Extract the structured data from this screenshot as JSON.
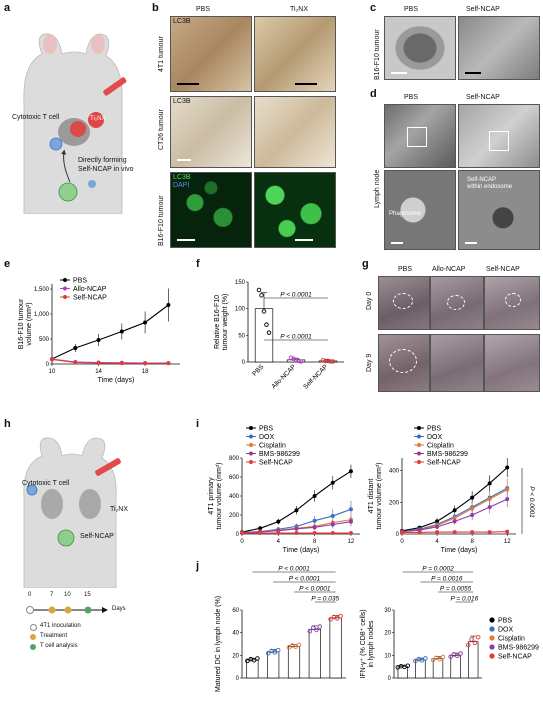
{
  "panel_a": {
    "letter": "a",
    "cytotoxic_label": "Cytotoxic T cell",
    "drug_label": "Ti₂NX",
    "forming_line1": "Directly forming",
    "forming_line2": "Self-NCAP in vivo"
  },
  "panel_b": {
    "letter": "b",
    "col_pbs": "PBS",
    "col_ti2nx": "Ti₂NX",
    "row1": "4T1 tumour",
    "row2": "CT26 tumour",
    "row3": "B16-F10 tumour",
    "stain_lc3b": "LC3B",
    "stain_dapi": "DAPI"
  },
  "panel_c": {
    "letter": "c",
    "col_pbs": "PBS",
    "col_self": "Self-NCAP",
    "row": "B16-F10 tumour"
  },
  "panel_d": {
    "letter": "d",
    "col_pbs": "PBS",
    "col_self": "Self-NCAP",
    "row": "Lymph node",
    "phagosome": "Phagosome",
    "endosome_line1": "Self-NCAP",
    "endosome_line2": "within endosome"
  },
  "panel_g": {
    "letter": "g",
    "col_pbs": "PBS",
    "col_allo": "Allo-NCAP",
    "col_self": "Self-NCAP",
    "day0": "Day 0",
    "day9": "Day 9"
  },
  "panel_h": {
    "letter": "h",
    "cytotoxic_label": "Cytotoxic T cell",
    "drug_label": "Ti₂NX",
    "self_label": "Self-NCAP",
    "timeline_ticks": [
      "0",
      "7",
      "10",
      "15"
    ],
    "timeline_unit": "Days",
    "legend": [
      "4T1 inoculation",
      "Treatment",
      "T cell analysis"
    ]
  },
  "chart_data": [
    {
      "id": "e",
      "letter": "e",
      "type": "line",
      "xlabel": "Time (days)",
      "ylabel_line1": "B16-F10 tumour",
      "ylabel_line2": "volume (mm³)",
      "xlim": [
        10,
        21
      ],
      "ylim": [
        0,
        1600
      ],
      "xticks": [
        "10",
        "14",
        "18"
      ],
      "yticks": [
        "0",
        "500",
        "1,000",
        "1,500"
      ],
      "x": [
        10,
        12,
        14,
        16,
        18,
        20
      ],
      "series": [
        {
          "name": "PBS",
          "color": "#000000",
          "values": [
            100,
            320,
            480,
            650,
            830,
            1180
          ],
          "err": [
            30,
            80,
            120,
            160,
            220,
            330
          ]
        },
        {
          "name": "Allo-NCAP",
          "color": "#b33cc9",
          "values": [
            100,
            40,
            30,
            25,
            20,
            20
          ],
          "err": [
            20,
            15,
            10,
            10,
            10,
            10
          ]
        },
        {
          "name": "Self-NCAP",
          "color": "#e23b3b",
          "values": [
            90,
            30,
            20,
            15,
            15,
            15
          ],
          "err": [
            20,
            10,
            10,
            10,
            10,
            10
          ]
        }
      ]
    },
    {
      "id": "f",
      "letter": "f",
      "type": "bar",
      "ylabel_line1": "Relative B16-F10",
      "ylabel_line2": "tumour weight (%)",
      "ylim": [
        0,
        150
      ],
      "yticks": [
        "0",
        "50",
        "100",
        "150"
      ],
      "categories": [
        "PBS",
        "Allo-NCAP",
        "Self-NCAP"
      ],
      "values": [
        100,
        4,
        2
      ],
      "err": [
        30,
        3,
        2
      ],
      "colors": [
        "#000000",
        "#b33cc9",
        "#e23b3b"
      ],
      "points": [
        [
          135,
          125,
          95,
          70,
          55
        ],
        [
          8,
          6,
          4,
          2,
          1
        ],
        [
          3,
          2,
          2,
          1,
          1
        ]
      ],
      "pvalues": [
        "P < 0.0001",
        "P < 0.0001"
      ]
    },
    {
      "id": "i-primary",
      "letter": "i",
      "type": "line",
      "xlabel": "Time (days)",
      "ylabel_line1": "4T1 primary",
      "ylabel_line2": "tumour volume (mm³)",
      "xlim": [
        0,
        13
      ],
      "ylim": [
        0,
        800
      ],
      "xticks": [
        "0",
        "4",
        "8",
        "12"
      ],
      "yticks": [
        "0",
        "200",
        "400",
        "600",
        "800"
      ],
      "x": [
        0,
        2,
        4,
        6,
        8,
        10,
        12
      ],
      "series": [
        {
          "name": "PBS",
          "color": "#000000",
          "values": [
            20,
            60,
            130,
            250,
            400,
            540,
            660
          ],
          "err": [
            5,
            15,
            30,
            45,
            60,
            70,
            70
          ]
        },
        {
          "name": "DOX",
          "color": "#3a6fc2",
          "values": [
            15,
            25,
            50,
            80,
            140,
            190,
            260
          ],
          "err": [
            5,
            10,
            20,
            30,
            50,
            70,
            90
          ]
        },
        {
          "name": "Cisplatin",
          "color": "#e3793a",
          "values": [
            15,
            25,
            40,
            60,
            80,
            120,
            150
          ],
          "err": [
            5,
            10,
            15,
            20,
            30,
            40,
            50
          ]
        },
        {
          "name": "BMS-986299",
          "color": "#8e3ca8",
          "values": [
            15,
            22,
            35,
            55,
            70,
            100,
            130
          ],
          "err": [
            5,
            10,
            15,
            20,
            30,
            40,
            50
          ]
        },
        {
          "name": "Self-NCAP",
          "color": "#e23b3b",
          "values": [
            10,
            10,
            10,
            10,
            10,
            10,
            10
          ],
          "err": [
            3,
            3,
            3,
            3,
            3,
            3,
            3
          ]
        }
      ]
    },
    {
      "id": "i-distant",
      "type": "line",
      "xlabel": "Time (days)",
      "ylabel_line1": "4T1 distant",
      "ylabel_line2": "tumour volume (mm³)",
      "xlim": [
        0,
        13
      ],
      "ylim": [
        0,
        480
      ],
      "xticks": [
        "0",
        "4",
        "8",
        "12"
      ],
      "yticks": [
        "0",
        "200",
        "400"
      ],
      "x": [
        0,
        2,
        4,
        6,
        8,
        10,
        12
      ],
      "series": [
        {
          "name": "PBS",
          "color": "#000000",
          "values": [
            20,
            40,
            80,
            150,
            230,
            320,
            420
          ],
          "err": [
            5,
            10,
            20,
            30,
            40,
            50,
            60
          ]
        },
        {
          "name": "DOX",
          "color": "#3a6fc2",
          "values": [
            15,
            30,
            60,
            110,
            170,
            230,
            290
          ],
          "err": [
            5,
            10,
            15,
            25,
            35,
            45,
            60
          ]
        },
        {
          "name": "Cisplatin",
          "color": "#e3793a",
          "values": [
            15,
            25,
            55,
            100,
            160,
            220,
            280
          ],
          "err": [
            5,
            10,
            15,
            25,
            35,
            45,
            60
          ]
        },
        {
          "name": "BMS-986299",
          "color": "#8e3ca8",
          "values": [
            15,
            25,
            45,
            80,
            120,
            170,
            220
          ],
          "err": [
            5,
            10,
            15,
            20,
            30,
            40,
            50
          ]
        },
        {
          "name": "Self-NCAP",
          "color": "#e23b3b",
          "values": [
            10,
            10,
            12,
            12,
            12,
            12,
            15
          ],
          "err": [
            3,
            3,
            3,
            3,
            3,
            3,
            3
          ]
        }
      ],
      "pvalue": "P < 0.0001"
    },
    {
      "id": "j-dc",
      "letter": "j",
      "type": "bar",
      "ylabel_line1": "Matured DC in lymph node (%)",
      "ylim": [
        0,
        60
      ],
      "yticks": [
        "0",
        "20",
        "40",
        "60"
      ],
      "categories": [
        "PBS",
        "DOX",
        "Cisplatin",
        "BMS-986299",
        "Self-NCAP"
      ],
      "values": [
        16,
        23,
        28,
        43,
        53
      ],
      "err": [
        1.5,
        2,
        1.5,
        3,
        2
      ],
      "colors": [
        "#000000",
        "#3a6fc2",
        "#e3793a",
        "#8e3ca8",
        "#e23b3b"
      ],
      "pvalues": [
        "P < 0.0001",
        "P < 0.0001",
        "P < 0.0001",
        "P = 0.035"
      ]
    },
    {
      "id": "j-ifn",
      "type": "bar",
      "ylabel_line1": "IFN-γ⁺ (% CD8⁺ cells)",
      "ylabel_line2": "in lymph nodes",
      "ylim": [
        0,
        30
      ],
      "yticks": [
        "0",
        "10",
        "20",
        "30"
      ],
      "categories": [
        "PBS",
        "DOX",
        "Cisplatin",
        "BMS-986299",
        "Self-NCAP"
      ],
      "values": [
        5,
        8,
        8.5,
        10,
        16
      ],
      "err": [
        0.5,
        0.8,
        1,
        1,
        2.5
      ],
      "colors": [
        "#000000",
        "#3a6fc2",
        "#e3793a",
        "#8e3ca8",
        "#e23b3b"
      ],
      "pvalues": [
        "P = 0.0002",
        "P = 0.0016",
        "P = 0.0055",
        "P = 0.016"
      ],
      "legend": [
        "PBS",
        "DOX",
        "Cisplatin",
        "BMS-986299",
        "Self-NCAP"
      ]
    }
  ]
}
